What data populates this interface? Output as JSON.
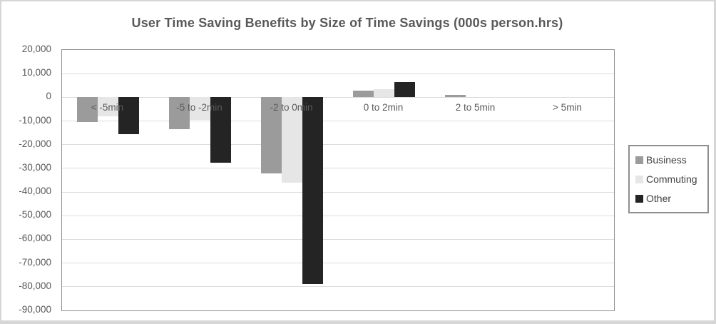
{
  "chart_data": {
    "type": "bar",
    "title": "User Time Saving Benefits by Size of Time Savings (000s person.hrs)",
    "categories": [
      "< -5min",
      "-5 to -2min",
      "-2 to 0min",
      "0 to 2min",
      "2 to 5min",
      "> 5min"
    ],
    "series": [
      {
        "name": "Business",
        "color": "#9b9b9b",
        "values": [
          -10500,
          -13500,
          -32000,
          2800,
          1000,
          0
        ]
      },
      {
        "name": "Commuting",
        "color": "#e6e6e6",
        "values": [
          -8000,
          -9500,
          -36000,
          3500,
          0,
          0
        ]
      },
      {
        "name": "Other",
        "color": "#242424",
        "values": [
          -15500,
          -27500,
          -79000,
          6500,
          0,
          0
        ]
      }
    ],
    "xlabel": "",
    "ylabel": "",
    "ylim": [
      -90000,
      20000
    ],
    "ytick_step": 10000,
    "grid": true,
    "legend_position": "right",
    "colors": {
      "gridline": "#dcdcdc",
      "plot_border": "#8f8f8f",
      "axis_text": "#595959",
      "title_text": "#595959",
      "legend_border": "#8f8f8f",
      "legend_text": "#404040"
    }
  }
}
